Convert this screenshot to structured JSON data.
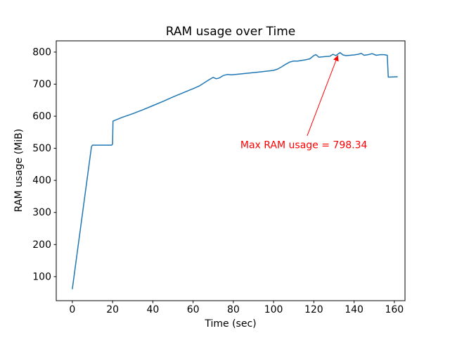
{
  "figure": {
    "background": "#ffffff"
  },
  "chart_data": {
    "type": "line",
    "title": "RAM usage over Time",
    "xlabel": "Time (sec)",
    "ylabel": "RAM usage (MiB)",
    "xlim": [
      -8,
      165.3
    ],
    "ylim": [
      25,
      835
    ],
    "xticks": [
      0,
      20,
      40,
      60,
      80,
      100,
      120,
      140,
      160
    ],
    "yticks": [
      100,
      200,
      300,
      400,
      500,
      600,
      700,
      800
    ],
    "grid": false,
    "legend": "none",
    "line_color": "#1f77b4",
    "series": [
      {
        "name": "RAM usage",
        "x": [
          0,
          9.5,
          10,
          19.5,
          20,
          20.2,
          25,
          30,
          35,
          40,
          45,
          50,
          55,
          60,
          63,
          66,
          68,
          70,
          71.5,
          73,
          75,
          77,
          79,
          81,
          84,
          87,
          90,
          93,
          96,
          100,
          102,
          104,
          106,
          108,
          110,
          112,
          114,
          116,
          118,
          120,
          121,
          122.5,
          124,
          126,
          128,
          129.5,
          131,
          132,
          133,
          134.5,
          136,
          138,
          140,
          142,
          143.5,
          145,
          147,
          149,
          151,
          153,
          155,
          156.5,
          157,
          161.5
        ],
        "y": [
          62,
          505,
          510,
          510,
          513,
          585,
          597,
          608,
          620,
          633,
          646,
          660,
          673,
          686,
          694,
          706,
          714,
          721,
          717,
          719,
          727,
          730,
          729,
          730,
          732,
          734,
          736,
          738,
          740,
          743,
          747,
          754,
          762,
          769,
          772,
          772,
          774,
          776,
          779,
          789,
          792,
          784,
          785,
          786,
          787,
          793,
          789,
          794,
          798.34,
          791,
          789,
          790,
          791,
          793,
          796,
          790,
          792,
          795,
          790,
          792,
          792,
          790,
          722,
          723
        ]
      }
    ],
    "annotation": {
      "text": "Max RAM usage = 798.34",
      "max_value": 798.34,
      "color": "#ff0000",
      "xy": [
        132,
        790
      ],
      "xytext": [
        83.5,
        500
      ],
      "arrow_tail": [
        116.7,
        539
      ]
    }
  }
}
